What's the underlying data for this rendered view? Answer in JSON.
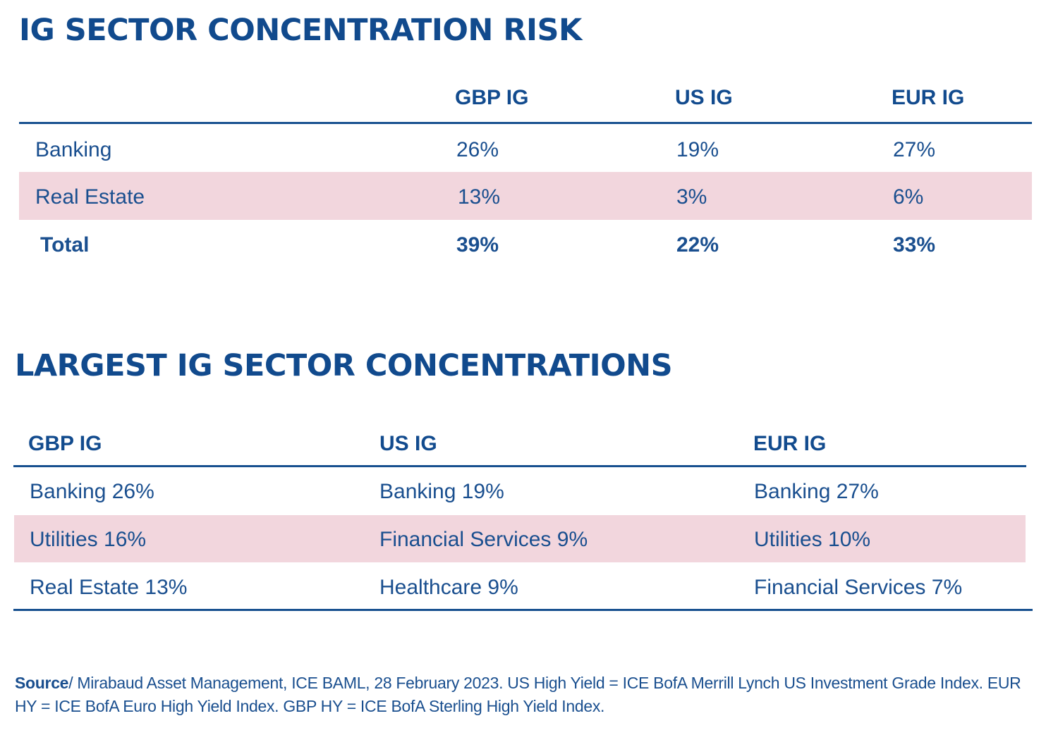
{
  "risk_table": {
    "title": "IG SECTOR CONCENTRATION RISK",
    "columns": [
      "GBP IG",
      "US IG",
      "EUR IG"
    ],
    "rows": [
      {
        "label": "Banking",
        "values": [
          "26%",
          "19%",
          "27%"
        ]
      },
      {
        "label": "Real Estate",
        "values": [
          "13%",
          "3%",
          "6%"
        ]
      },
      {
        "label": "Total",
        "values": [
          "39%",
          "22%",
          "33%"
        ]
      }
    ]
  },
  "largest_table": {
    "title": "LARGEST IG SECTOR CONCENTRATIONS",
    "columns": [
      "GBP IG",
      "US IG",
      "EUR IG"
    ],
    "rows": [
      [
        "Banking 26%",
        "Banking 19%",
        "Banking 27%"
      ],
      [
        "Utilities 16%",
        "Financial Services 9%",
        "Utilities 10%"
      ],
      [
        "Real Estate 13%",
        "Healthcare 9%",
        "Financial Services 7%"
      ]
    ]
  },
  "source": {
    "label": "Source",
    "text": "/ Mirabaud Asset Management, ICE BAML, 28 February 2023. US High Yield =  ICE BofA Merrill Lynch US Investment Grade Index. EUR HY = ICE BofA Euro High Yield Index. GBP HY = ICE BofA Sterling High Yield Index."
  },
  "colors": {
    "primary_blue": "#114a8d",
    "highlight_pink": "#f2d6dd"
  }
}
